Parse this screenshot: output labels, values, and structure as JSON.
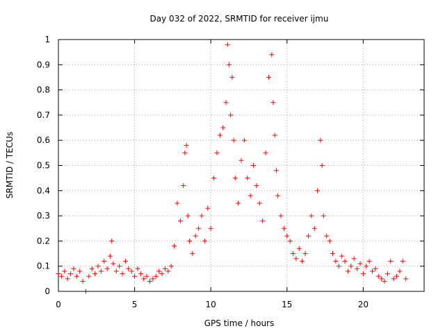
{
  "chart_data": {
    "type": "scatter",
    "title": "Day 032 of 2022, SRMTID for receiver ijmu",
    "xlabel": "GPS time / hours",
    "ylabel": "SRMTID / TECUs",
    "xlim": [
      0,
      24
    ],
    "ylim": [
      0,
      1
    ],
    "xticks": [
      0,
      5,
      10,
      15,
      20
    ],
    "xtick_labels": [
      "0",
      "5",
      "10",
      "15",
      "20"
    ],
    "yticks": [
      0,
      0.1,
      0.2,
      0.3,
      0.4,
      0.5,
      0.6,
      0.7,
      0.8,
      0.9,
      1
    ],
    "ytick_labels": [
      "0",
      "0.1",
      "0.2",
      "0.3",
      "0.4",
      "0.5",
      "0.6",
      "0.7",
      "0.8",
      "0.9",
      "1"
    ],
    "grid": true,
    "marker": "+",
    "color": "#ff0000",
    "series": [
      {
        "name": "SRMTID",
        "x": [
          0.0,
          0.2,
          0.4,
          0.6,
          0.8,
          1.0,
          1.2,
          1.4,
          1.6,
          1.8,
          2.0,
          2.2,
          2.4,
          2.6,
          2.8,
          3.0,
          3.2,
          3.4,
          3.5,
          3.6,
          3.8,
          4.0,
          4.2,
          4.4,
          4.6,
          4.8,
          5.0,
          5.2,
          5.4,
          5.6,
          5.8,
          6.0,
          6.2,
          6.4,
          6.6,
          6.8,
          7.0,
          7.2,
          7.4,
          7.6,
          7.8,
          8.0,
          8.2,
          8.3,
          8.4,
          8.5,
          8.6,
          8.8,
          9.0,
          9.2,
          9.4,
          9.6,
          9.8,
          10.0,
          10.2,
          10.4,
          10.6,
          10.8,
          11.0,
          11.1,
          11.2,
          11.3,
          11.4,
          11.5,
          11.6,
          11.8,
          12.0,
          12.2,
          12.4,
          12.6,
          12.8,
          13.0,
          13.2,
          13.4,
          13.6,
          13.8,
          14.0,
          14.1,
          14.2,
          14.3,
          14.4,
          14.6,
          14.8,
          15.0,
          15.2,
          15.4,
          15.6,
          15.8,
          16.0,
          16.2,
          16.4,
          16.6,
          16.8,
          17.0,
          17.2,
          17.3,
          17.4,
          17.6,
          17.8,
          18.0,
          18.2,
          18.4,
          18.6,
          18.8,
          19.0,
          19.2,
          19.4,
          19.6,
          19.8,
          20.0,
          20.2,
          20.4,
          20.6,
          20.8,
          21.0,
          21.2,
          21.4,
          21.6,
          21.8,
          22.0,
          22.2,
          22.4,
          22.6,
          22.8
        ],
        "y": [
          0.07,
          0.06,
          0.08,
          0.05,
          0.07,
          0.09,
          0.06,
          0.08,
          0.04,
          0.0,
          0.06,
          0.09,
          0.07,
          0.1,
          0.08,
          0.12,
          0.09,
          0.14,
          0.2,
          0.11,
          0.08,
          0.1,
          0.07,
          0.12,
          0.09,
          0.08,
          0.06,
          0.09,
          0.07,
          0.05,
          0.06,
          0.04,
          0.05,
          0.06,
          0.08,
          0.07,
          0.09,
          0.08,
          0.1,
          0.18,
          0.35,
          0.28,
          0.42,
          0.55,
          0.58,
          0.3,
          0.2,
          0.15,
          0.22,
          0.25,
          0.3,
          0.2,
          0.33,
          0.25,
          0.45,
          0.55,
          0.62,
          0.65,
          0.75,
          0.98,
          0.9,
          0.7,
          0.85,
          0.6,
          0.45,
          0.35,
          0.52,
          0.6,
          0.45,
          0.38,
          0.5,
          0.42,
          0.35,
          0.28,
          0.55,
          0.85,
          0.94,
          0.75,
          0.62,
          0.48,
          0.38,
          0.3,
          0.25,
          0.22,
          0.2,
          0.15,
          0.13,
          0.17,
          0.12,
          0.15,
          0.22,
          0.3,
          0.25,
          0.4,
          0.6,
          0.5,
          0.3,
          0.22,
          0.2,
          0.15,
          0.12,
          0.1,
          0.14,
          0.12,
          0.08,
          0.1,
          0.13,
          0.09,
          0.11,
          0.07,
          0.1,
          0.12,
          0.08,
          0.09,
          0.06,
          0.05,
          0.04,
          0.07,
          0.12,
          0.05,
          0.06,
          0.08,
          0.12,
          0.05
        ]
      }
    ]
  }
}
